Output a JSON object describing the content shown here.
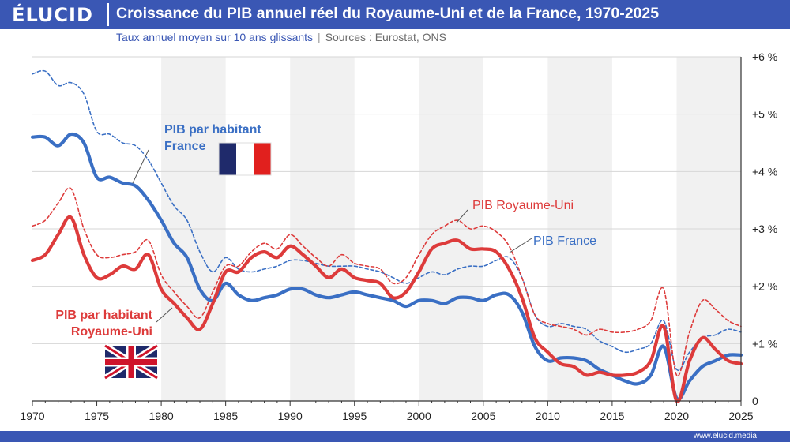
{
  "header": {
    "logo": "ÉLUCID",
    "title": "Croissance du PIB annuel réel du Royaume-Uni et de la France, 1970-2025",
    "subtitle": "Taux annuel moyen sur 10 ans glissants",
    "sources": "Sources : Eurostat, ONS"
  },
  "footer": {
    "url": "www.elucid.media"
  },
  "colors": {
    "brand": "#3a57b4",
    "france": "#3a6fc4",
    "uk": "#dd3b3b"
  },
  "annotations": {
    "fr_per_capita": [
      "PIB par habitant",
      "France"
    ],
    "uk_per_capita": [
      "PIB par habitant",
      "Royaume-Uni"
    ],
    "uk_gdp": "PIB Royaume-Uni",
    "fr_gdp": "PIB France"
  },
  "chart_data": {
    "type": "line",
    "xlim": [
      1970,
      2025
    ],
    "ylim": [
      0,
      6
    ],
    "x_ticks": [
      1970,
      1975,
      1980,
      1985,
      1990,
      1995,
      2000,
      2005,
      2010,
      2015,
      2020,
      2025
    ],
    "y_ticks": [
      "0",
      "+1 %",
      "+2 %",
      "+3 %",
      "+4 %",
      "+5 %",
      "+6 %"
    ],
    "shaded_bands": [
      [
        1980,
        1985
      ],
      [
        1990,
        1995
      ],
      [
        2000,
        2005
      ],
      [
        2010,
        2015
      ],
      [
        2020,
        2025
      ]
    ],
    "grid": "horizontal",
    "series": [
      {
        "name": "PIB par habitant France",
        "color": "#3a6fc4",
        "style": "solid",
        "points": [
          [
            1970,
            4.6
          ],
          [
            1971,
            4.6
          ],
          [
            1972,
            4.45
          ],
          [
            1973,
            4.65
          ],
          [
            1974,
            4.5
          ],
          [
            1975,
            3.9
          ],
          [
            1976,
            3.9
          ],
          [
            1977,
            3.8
          ],
          [
            1978,
            3.75
          ],
          [
            1979,
            3.5
          ],
          [
            1980,
            3.15
          ],
          [
            1981,
            2.75
          ],
          [
            1982,
            2.5
          ],
          [
            1983,
            1.95
          ],
          [
            1984,
            1.75
          ],
          [
            1985,
            2.05
          ],
          [
            1986,
            1.85
          ],
          [
            1987,
            1.75
          ],
          [
            1988,
            1.8
          ],
          [
            1989,
            1.85
          ],
          [
            1990,
            1.95
          ],
          [
            1991,
            1.95
          ],
          [
            1992,
            1.85
          ],
          [
            1993,
            1.8
          ],
          [
            1994,
            1.85
          ],
          [
            1995,
            1.9
          ],
          [
            1996,
            1.85
          ],
          [
            1997,
            1.8
          ],
          [
            1998,
            1.75
          ],
          [
            1999,
            1.65
          ],
          [
            2000,
            1.75
          ],
          [
            2001,
            1.75
          ],
          [
            2002,
            1.7
          ],
          [
            2003,
            1.8
          ],
          [
            2004,
            1.8
          ],
          [
            2005,
            1.75
          ],
          [
            2006,
            1.85
          ],
          [
            2007,
            1.85
          ],
          [
            2008,
            1.55
          ],
          [
            2009,
            0.95
          ],
          [
            2010,
            0.7
          ],
          [
            2011,
            0.75
          ],
          [
            2012,
            0.75
          ],
          [
            2013,
            0.7
          ],
          [
            2014,
            0.55
          ],
          [
            2015,
            0.45
          ],
          [
            2016,
            0.35
          ],
          [
            2017,
            0.3
          ],
          [
            2018,
            0.45
          ],
          [
            2019,
            0.95
          ],
          [
            2020,
            0.05
          ],
          [
            2021,
            0.35
          ],
          [
            2022,
            0.6
          ],
          [
            2023,
            0.7
          ],
          [
            2024,
            0.8
          ],
          [
            2025,
            0.8
          ]
        ]
      },
      {
        "name": "PIB France",
        "color": "#3a6fc4",
        "style": "dashed",
        "points": [
          [
            1970,
            5.7
          ],
          [
            1971,
            5.75
          ],
          [
            1972,
            5.5
          ],
          [
            1973,
            5.55
          ],
          [
            1974,
            5.35
          ],
          [
            1975,
            4.7
          ],
          [
            1976,
            4.65
          ],
          [
            1977,
            4.5
          ],
          [
            1978,
            4.45
          ],
          [
            1979,
            4.2
          ],
          [
            1980,
            3.8
          ],
          [
            1981,
            3.4
          ],
          [
            1982,
            3.15
          ],
          [
            1983,
            2.6
          ],
          [
            1984,
            2.25
          ],
          [
            1985,
            2.5
          ],
          [
            1986,
            2.3
          ],
          [
            1987,
            2.25
          ],
          [
            1988,
            2.3
          ],
          [
            1989,
            2.35
          ],
          [
            1990,
            2.45
          ],
          [
            1991,
            2.45
          ],
          [
            1992,
            2.4
          ],
          [
            1993,
            2.35
          ],
          [
            1994,
            2.35
          ],
          [
            1995,
            2.35
          ],
          [
            1996,
            2.3
          ],
          [
            1997,
            2.25
          ],
          [
            1998,
            2.15
          ],
          [
            1999,
            2.05
          ],
          [
            2000,
            2.15
          ],
          [
            2001,
            2.25
          ],
          [
            2002,
            2.2
          ],
          [
            2003,
            2.3
          ],
          [
            2004,
            2.35
          ],
          [
            2005,
            2.35
          ],
          [
            2006,
            2.45
          ],
          [
            2007,
            2.5
          ],
          [
            2008,
            2.15
          ],
          [
            2009,
            1.5
          ],
          [
            2010,
            1.3
          ],
          [
            2011,
            1.35
          ],
          [
            2012,
            1.3
          ],
          [
            2013,
            1.25
          ],
          [
            2014,
            1.05
          ],
          [
            2015,
            0.95
          ],
          [
            2016,
            0.85
          ],
          [
            2017,
            0.9
          ],
          [
            2018,
            1.0
          ],
          [
            2019,
            1.4
          ],
          [
            2020,
            0.55
          ],
          [
            2021,
            0.85
          ],
          [
            2022,
            1.1
          ],
          [
            2023,
            1.15
          ],
          [
            2024,
            1.25
          ],
          [
            2025,
            1.2
          ]
        ]
      },
      {
        "name": "PIB par habitant Royaume-Uni",
        "color": "#dd3b3b",
        "style": "solid",
        "points": [
          [
            1970,
            2.45
          ],
          [
            1971,
            2.55
          ],
          [
            1972,
            2.9
          ],
          [
            1973,
            3.2
          ],
          [
            1974,
            2.55
          ],
          [
            1975,
            2.15
          ],
          [
            1976,
            2.2
          ],
          [
            1977,
            2.35
          ],
          [
            1978,
            2.3
          ],
          [
            1979,
            2.55
          ],
          [
            1980,
            1.95
          ],
          [
            1981,
            1.7
          ],
          [
            1982,
            1.45
          ],
          [
            1983,
            1.25
          ],
          [
            1984,
            1.7
          ],
          [
            1985,
            2.25
          ],
          [
            1986,
            2.25
          ],
          [
            1987,
            2.5
          ],
          [
            1988,
            2.6
          ],
          [
            1989,
            2.5
          ],
          [
            1990,
            2.7
          ],
          [
            1991,
            2.55
          ],
          [
            1992,
            2.35
          ],
          [
            1993,
            2.15
          ],
          [
            1994,
            2.3
          ],
          [
            1995,
            2.15
          ],
          [
            1996,
            2.1
          ],
          [
            1997,
            2.05
          ],
          [
            1998,
            1.8
          ],
          [
            1999,
            1.9
          ],
          [
            2000,
            2.25
          ],
          [
            2001,
            2.65
          ],
          [
            2002,
            2.75
          ],
          [
            2003,
            2.8
          ],
          [
            2004,
            2.65
          ],
          [
            2005,
            2.65
          ],
          [
            2006,
            2.6
          ],
          [
            2007,
            2.3
          ],
          [
            2008,
            1.8
          ],
          [
            2009,
            1.1
          ],
          [
            2010,
            0.85
          ],
          [
            2011,
            0.65
          ],
          [
            2012,
            0.6
          ],
          [
            2013,
            0.45
          ],
          [
            2014,
            0.5
          ],
          [
            2015,
            0.45
          ],
          [
            2016,
            0.45
          ],
          [
            2017,
            0.5
          ],
          [
            2018,
            0.7
          ],
          [
            2019,
            1.3
          ],
          [
            2020,
            0.0
          ],
          [
            2021,
            0.7
          ],
          [
            2022,
            1.1
          ],
          [
            2023,
            0.9
          ],
          [
            2024,
            0.7
          ],
          [
            2025,
            0.65
          ]
        ]
      },
      {
        "name": "PIB Royaume-Uni",
        "color": "#dd3b3b",
        "style": "dashed",
        "points": [
          [
            1970,
            3.05
          ],
          [
            1971,
            3.15
          ],
          [
            1972,
            3.45
          ],
          [
            1973,
            3.7
          ],
          [
            1974,
            3.0
          ],
          [
            1975,
            2.55
          ],
          [
            1976,
            2.5
          ],
          [
            1977,
            2.55
          ],
          [
            1978,
            2.6
          ],
          [
            1979,
            2.8
          ],
          [
            1980,
            2.2
          ],
          [
            1981,
            1.9
          ],
          [
            1982,
            1.65
          ],
          [
            1983,
            1.45
          ],
          [
            1984,
            1.9
          ],
          [
            1985,
            2.35
          ],
          [
            1986,
            2.35
          ],
          [
            1987,
            2.6
          ],
          [
            1988,
            2.75
          ],
          [
            1989,
            2.65
          ],
          [
            1990,
            2.9
          ],
          [
            1991,
            2.7
          ],
          [
            1992,
            2.5
          ],
          [
            1993,
            2.35
          ],
          [
            1994,
            2.55
          ],
          [
            1995,
            2.4
          ],
          [
            1996,
            2.35
          ],
          [
            1997,
            2.3
          ],
          [
            1998,
            2.05
          ],
          [
            1999,
            2.15
          ],
          [
            2000,
            2.55
          ],
          [
            2001,
            2.9
          ],
          [
            2002,
            3.05
          ],
          [
            2003,
            3.15
          ],
          [
            2004,
            3.0
          ],
          [
            2005,
            3.05
          ],
          [
            2006,
            2.95
          ],
          [
            2007,
            2.7
          ],
          [
            2008,
            2.15
          ],
          [
            2009,
            1.5
          ],
          [
            2010,
            1.35
          ],
          [
            2011,
            1.3
          ],
          [
            2012,
            1.25
          ],
          [
            2013,
            1.15
          ],
          [
            2014,
            1.25
          ],
          [
            2015,
            1.2
          ],
          [
            2016,
            1.2
          ],
          [
            2017,
            1.25
          ],
          [
            2018,
            1.4
          ],
          [
            2019,
            1.95
          ],
          [
            2020,
            0.45
          ],
          [
            2021,
            1.2
          ],
          [
            2022,
            1.75
          ],
          [
            2023,
            1.6
          ],
          [
            2024,
            1.4
          ],
          [
            2025,
            1.3
          ]
        ]
      }
    ]
  }
}
